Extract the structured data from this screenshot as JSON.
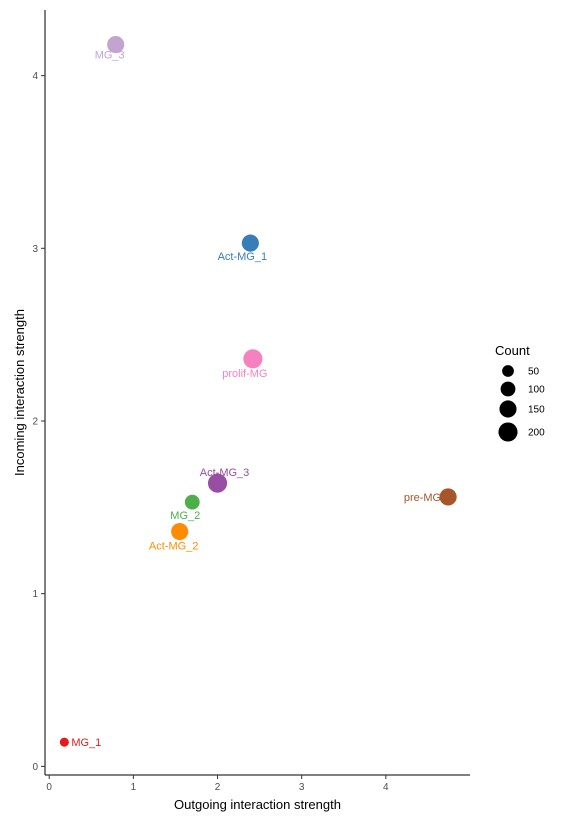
{
  "chart_data": {
    "type": "scatter",
    "title": "",
    "xlabel": "Outgoing interaction strength",
    "ylabel": "Incoming interaction strength",
    "xlim": [
      -0.05,
      5.0
    ],
    "ylim": [
      -0.05,
      4.38
    ],
    "x_ticks": [
      0,
      1,
      2,
      3,
      4
    ],
    "y_ticks": [
      0,
      1,
      2,
      3,
      4
    ],
    "grid": false,
    "points": [
      {
        "label": "MG_3",
        "x": 0.79,
        "y": 4.18,
        "count": 150,
        "color": "#C2A5CF"
      },
      {
        "label": "Act-MG_1",
        "x": 2.39,
        "y": 3.03,
        "count": 150,
        "color": "#377EB8"
      },
      {
        "label": "prolif-MG",
        "x": 2.42,
        "y": 2.36,
        "count": 200,
        "color": "#F781BF"
      },
      {
        "label": "Act-MG_3",
        "x": 2.0,
        "y": 1.64,
        "count": 200,
        "color": "#984EA3"
      },
      {
        "label": "pre-MG",
        "x": 4.74,
        "y": 1.56,
        "count": 150,
        "color": "#A65628"
      },
      {
        "label": "MG_2",
        "x": 1.7,
        "y": 1.53,
        "count": 100,
        "color": "#4DAF4A"
      },
      {
        "label": "Act-MG_2",
        "x": 1.55,
        "y": 1.36,
        "count": 150,
        "color": "#FF8C00"
      },
      {
        "label": "MG_1",
        "x": 0.18,
        "y": 0.14,
        "count": 20,
        "color": "#E41A1C"
      }
    ],
    "legend": {
      "title": "Count",
      "placement": "right",
      "entries": [
        {
          "label": "50",
          "count": 50
        },
        {
          "label": "100",
          "count": 100
        },
        {
          "label": "150",
          "count": 150
        },
        {
          "label": "200",
          "count": 200
        }
      ]
    }
  }
}
